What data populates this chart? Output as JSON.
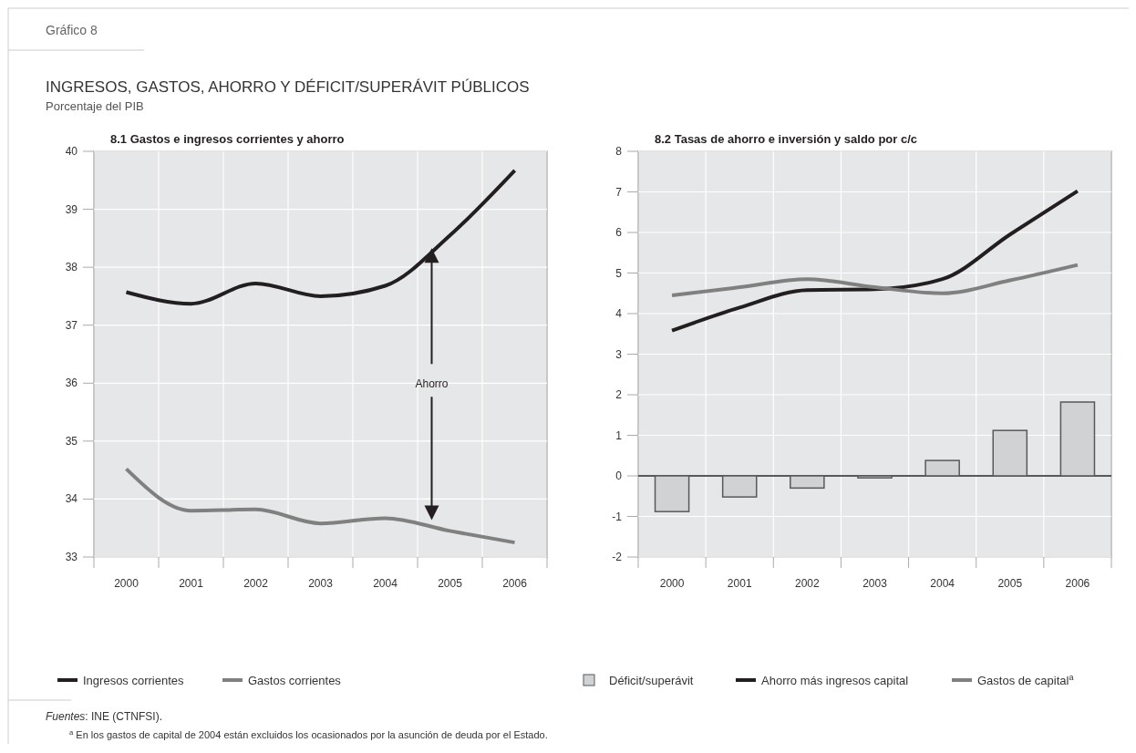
{
  "chart_data": [
    {
      "type": "line",
      "title": "8.1 Gastos e ingresos corrientes y ahorro",
      "categories": [
        "2000",
        "2001",
        "2002",
        "2003",
        "2004",
        "2005",
        "2006"
      ],
      "series": [
        {
          "name": "Ingresos corrientes",
          "color": "#231f20",
          "values": [
            37.57,
            37.37,
            37.72,
            37.5,
            37.68,
            38.55,
            39.67
          ]
        },
        {
          "name": "Gastos corrientes",
          "color": "#808080",
          "values": [
            34.52,
            33.8,
            33.82,
            33.58,
            33.67,
            33.45,
            33.25
          ]
        }
      ],
      "ylim": [
        33,
        40
      ],
      "yticks": [
        33,
        34,
        35,
        36,
        37,
        38,
        39,
        40
      ],
      "grid": true,
      "legend": "bottom",
      "marker": "none",
      "line_style": "solid",
      "annotations": [
        "Gráfico 8",
        "INGRESOS, GASTOS, AHORRO Y DÉFICIT/SUPERÁVIT PÚBLICOS",
        "Porcentaje del PIB",
        "Ahorro"
      ]
    },
    {
      "type": "line",
      "title": "8.2 Tasas de ahorro e inversión y saldo por c/c",
      "categories": [
        "2000",
        "2001",
        "2002",
        "2003",
        "2004",
        "2005",
        "2006"
      ],
      "series": [
        {
          "name": "Déficit/superávit",
          "type": "bar",
          "color": "#d1d2d4",
          "values": [
            -0.88,
            -0.52,
            -0.3,
            -0.05,
            0.38,
            1.12,
            1.82
          ]
        },
        {
          "name": "Ahorro más ingresos capital",
          "color": "#231f20",
          "values": [
            3.58,
            4.15,
            4.58,
            4.6,
            4.85,
            5.95,
            7.02
          ]
        },
        {
          "name": "Gastos de capital$^{a}$",
          "color": "#808080",
          "values": [
            4.45,
            4.65,
            4.85,
            4.65,
            4.5,
            4.82,
            5.2
          ]
        }
      ],
      "ylim": [
        -2,
        8
      ],
      "yticks": [
        -2,
        -1,
        0,
        1,
        2,
        3,
        4,
        5,
        6,
        7,
        8
      ],
      "grid": true,
      "legend": "bottom",
      "marker": "none",
      "line_style": "solid",
      "annotations": [
        "Fuentes: INE (CTNFSI).",
        "$^{a}$ En los gastos de capital de 2004 están excluidos los ocasionados por la asunción de deuda por el Estado."
      ]
    }
  ]
}
